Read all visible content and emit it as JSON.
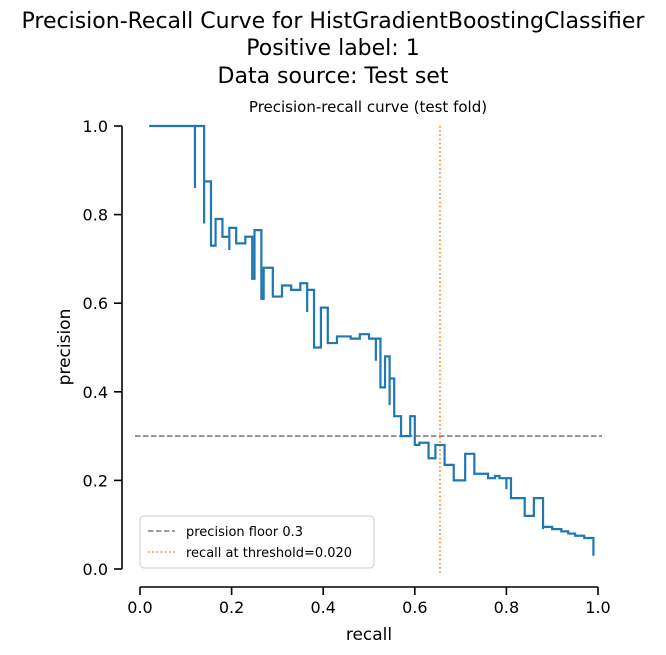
{
  "figure": {
    "title_lines": [
      "Precision-Recall Curve for HistGradientBoostingClassifier",
      "Positive label: 1",
      "Data source: Test set"
    ]
  },
  "colors": {
    "curve": "#1f77b4",
    "precision_floor": "#7f7f7f",
    "recall_marker": "#ff7f0e"
  },
  "chart_data": {
    "type": "line",
    "title": "Precision-recall curve (test fold)",
    "xlabel": "recall",
    "ylabel": "precision",
    "xlim": [
      0,
      1
    ],
    "ylim": [
      0,
      1
    ],
    "xticks": [
      "0.0",
      "0.2",
      "0.4",
      "0.6",
      "0.8",
      "1.0"
    ],
    "yticks": [
      "0.0",
      "0.2",
      "0.4",
      "0.6",
      "0.8",
      "1.0"
    ],
    "grid": false,
    "legend_position": "lower-left",
    "series": [
      {
        "name": "",
        "drawstyle": "steps-post",
        "recall": [
          0.02,
          0.12,
          0.12,
          0.12,
          0.14,
          0.14,
          0.14,
          0.155,
          0.155,
          0.165,
          0.165,
          0.18,
          0.18,
          0.195,
          0.195,
          0.21,
          0.21,
          0.23,
          0.23,
          0.245,
          0.245,
          0.25,
          0.25,
          0.265,
          0.265,
          0.27,
          0.27,
          0.29,
          0.29,
          0.31,
          0.31,
          0.33,
          0.33,
          0.35,
          0.35,
          0.365,
          0.365,
          0.38,
          0.38,
          0.395,
          0.395,
          0.41,
          0.41,
          0.43,
          0.43,
          0.46,
          0.46,
          0.48,
          0.48,
          0.5,
          0.5,
          0.515,
          0.515,
          0.525,
          0.525,
          0.535,
          0.535,
          0.545,
          0.545,
          0.555,
          0.555,
          0.57,
          0.57,
          0.59,
          0.59,
          0.6,
          0.6,
          0.61,
          0.61,
          0.63,
          0.63,
          0.645,
          0.645,
          0.665,
          0.665,
          0.685,
          0.685,
          0.71,
          0.71,
          0.73,
          0.73,
          0.76,
          0.76,
          0.775,
          0.775,
          0.785,
          0.785,
          0.8,
          0.8,
          0.81,
          0.81,
          0.84,
          0.84,
          0.86,
          0.86,
          0.88,
          0.88,
          0.9,
          0.9,
          0.92,
          0.92,
          0.935,
          0.935,
          0.95,
          0.95,
          0.97,
          0.97,
          0.99,
          0.99
        ],
        "precision": [
          1.0,
          1.0,
          0.86,
          1.0,
          1.0,
          0.78,
          0.875,
          0.875,
          0.73,
          0.79,
          0.79,
          0.75,
          0.75,
          0.72,
          0.77,
          0.77,
          0.735,
          0.735,
          0.75,
          0.75,
          0.655,
          0.655,
          0.765,
          0.765,
          0.61,
          0.68,
          0.68,
          0.615,
          0.615,
          0.64,
          0.64,
          0.63,
          0.63,
          0.645,
          0.645,
          0.58,
          0.63,
          0.63,
          0.5,
          0.59,
          0.59,
          0.51,
          0.51,
          0.525,
          0.525,
          0.52,
          0.52,
          0.53,
          0.53,
          0.52,
          0.52,
          0.47,
          0.52,
          0.52,
          0.41,
          0.48,
          0.48,
          0.37,
          0.43,
          0.43,
          0.345,
          0.345,
          0.3,
          0.3,
          0.345,
          0.345,
          0.28,
          0.28,
          0.285,
          0.285,
          0.25,
          0.25,
          0.28,
          0.28,
          0.235,
          0.235,
          0.2,
          0.26,
          0.26,
          0.215,
          0.215,
          0.205,
          0.205,
          0.21,
          0.21,
          0.205,
          0.205,
          0.18,
          0.205,
          0.205,
          0.16,
          0.16,
          0.12,
          0.16,
          0.16,
          0.09,
          0.095,
          0.095,
          0.09,
          0.09,
          0.085,
          0.085,
          0.08,
          0.08,
          0.075,
          0.075,
          0.07,
          0.07,
          0.03
        ]
      }
    ],
    "reference_lines": [
      {
        "orientation": "horizontal",
        "value": 0.3,
        "style": "dashed",
        "label": "precision floor 0.3"
      },
      {
        "orientation": "vertical",
        "value": 0.655,
        "style": "dotted",
        "label": "recall at threshold=0.020"
      }
    ]
  }
}
